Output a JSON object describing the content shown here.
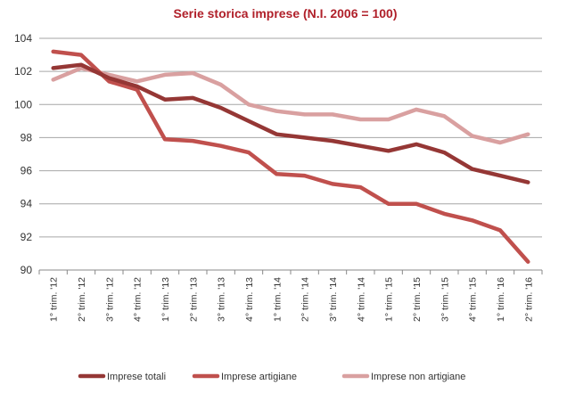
{
  "chart_data": {
    "type": "line",
    "title": "Serie storica imprese  (N.I. 2006 = 100)",
    "xlabel": "",
    "ylabel": "",
    "ylim": [
      90,
      104
    ],
    "yticks": [
      90,
      92,
      94,
      96,
      98,
      100,
      102,
      104
    ],
    "grid": true,
    "legend_position": "bottom",
    "categories": [
      "1° trim. '12",
      "2° trim. '12",
      "3° trim. '12",
      "4° trim. '12",
      "1° trim. '13",
      "2° trim. '13",
      "3° trim. '13",
      "4° trim. '13",
      "1° trim. '14",
      "2° trim. '14",
      "3° trim. '14",
      "4° trim. '14",
      "1° trim. '15",
      "2° trim. '15",
      "3° trim. '15",
      "4° trim. '15",
      "1° trim. '16",
      "2° trim. '16"
    ],
    "series": [
      {
        "name": "Imprese totali",
        "color": "#953735",
        "values": [
          102.2,
          102.4,
          101.6,
          101.1,
          100.3,
          100.4,
          99.8,
          99.0,
          98.2,
          98.0,
          97.8,
          97.5,
          97.2,
          97.6,
          97.1,
          96.1,
          95.7,
          95.3
        ]
      },
      {
        "name": "Imprese artigiane",
        "color": "#c0504d",
        "values": [
          103.2,
          103.0,
          101.4,
          100.9,
          97.9,
          97.8,
          97.5,
          97.1,
          95.8,
          95.7,
          95.2,
          95.0,
          94.0,
          94.0,
          93.4,
          93.0,
          92.4,
          90.5
        ]
      },
      {
        "name": "Imprese non artigiane",
        "color": "#d9a0a0",
        "values": [
          101.5,
          102.2,
          101.8,
          101.4,
          101.8,
          101.9,
          101.2,
          100.0,
          99.6,
          99.4,
          99.4,
          99.1,
          99.1,
          99.7,
          99.3,
          98.1,
          97.7,
          98.2
        ]
      }
    ]
  }
}
